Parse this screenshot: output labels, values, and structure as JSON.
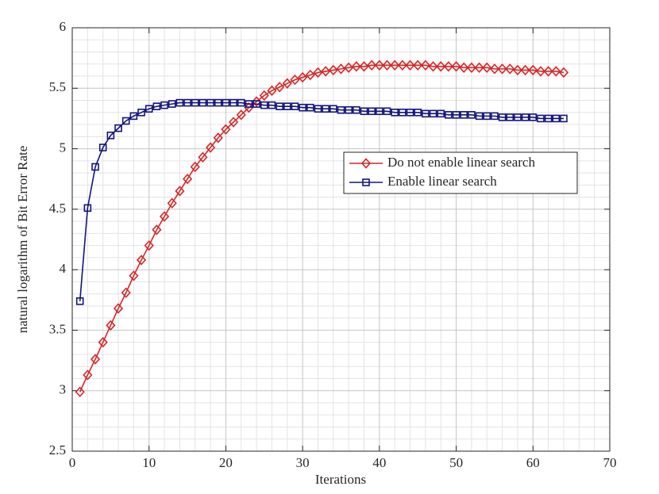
{
  "chart_data": {
    "type": "line",
    "xlabel": "Iterations",
    "ylabel": "natural logarithm of Bit Error Rate",
    "x": [
      1,
      2,
      3,
      4,
      5,
      6,
      7,
      8,
      9,
      10,
      11,
      12,
      13,
      14,
      15,
      16,
      17,
      18,
      19,
      20,
      21,
      22,
      23,
      24,
      25,
      26,
      27,
      28,
      29,
      30,
      31,
      32,
      33,
      34,
      35,
      36,
      37,
      38,
      39,
      40,
      41,
      42,
      43,
      44,
      45,
      46,
      47,
      48,
      49,
      50,
      51,
      52,
      53,
      54,
      55,
      56,
      57,
      58,
      59,
      60,
      61,
      62,
      63,
      64
    ],
    "series": [
      {
        "name": "Do not enable linear search",
        "color": "#d62728",
        "marker": "diamond",
        "values": [
          2.99,
          3.13,
          3.26,
          3.4,
          3.54,
          3.68,
          3.81,
          3.95,
          4.08,
          4.2,
          4.33,
          4.44,
          4.55,
          4.65,
          4.75,
          4.85,
          4.93,
          5.01,
          5.09,
          5.16,
          5.22,
          5.28,
          5.34,
          5.39,
          5.44,
          5.48,
          5.51,
          5.54,
          5.57,
          5.59,
          5.61,
          5.63,
          5.64,
          5.65,
          5.66,
          5.67,
          5.68,
          5.68,
          5.69,
          5.69,
          5.69,
          5.69,
          5.69,
          5.69,
          5.69,
          5.69,
          5.68,
          5.68,
          5.68,
          5.68,
          5.67,
          5.67,
          5.67,
          5.67,
          5.66,
          5.66,
          5.66,
          5.65,
          5.65,
          5.65,
          5.64,
          5.64,
          5.64,
          5.63
        ]
      },
      {
        "name": "Enable linear search",
        "color": "#14147e",
        "marker": "square",
        "values": [
          3.74,
          4.51,
          4.85,
          5.01,
          5.11,
          5.17,
          5.23,
          5.27,
          5.3,
          5.33,
          5.35,
          5.36,
          5.37,
          5.38,
          5.38,
          5.38,
          5.38,
          5.38,
          5.38,
          5.38,
          5.38,
          5.38,
          5.37,
          5.37,
          5.36,
          5.36,
          5.35,
          5.35,
          5.35,
          5.34,
          5.34,
          5.33,
          5.33,
          5.33,
          5.32,
          5.32,
          5.32,
          5.31,
          5.31,
          5.31,
          5.31,
          5.3,
          5.3,
          5.3,
          5.3,
          5.29,
          5.29,
          5.29,
          5.28,
          5.28,
          5.28,
          5.28,
          5.27,
          5.27,
          5.27,
          5.26,
          5.26,
          5.26,
          5.26,
          5.26,
          5.25,
          5.25,
          5.25,
          5.25
        ]
      }
    ],
    "xlim": [
      0,
      70
    ],
    "xticks": [
      0,
      10,
      20,
      30,
      40,
      50,
      60,
      70
    ],
    "ylim": [
      2.5,
      6
    ],
    "yticks": [
      2.5,
      3,
      3.5,
      4,
      4.5,
      5,
      5.5,
      6
    ],
    "grid": true,
    "minor_grid": true,
    "legend": "east"
  }
}
